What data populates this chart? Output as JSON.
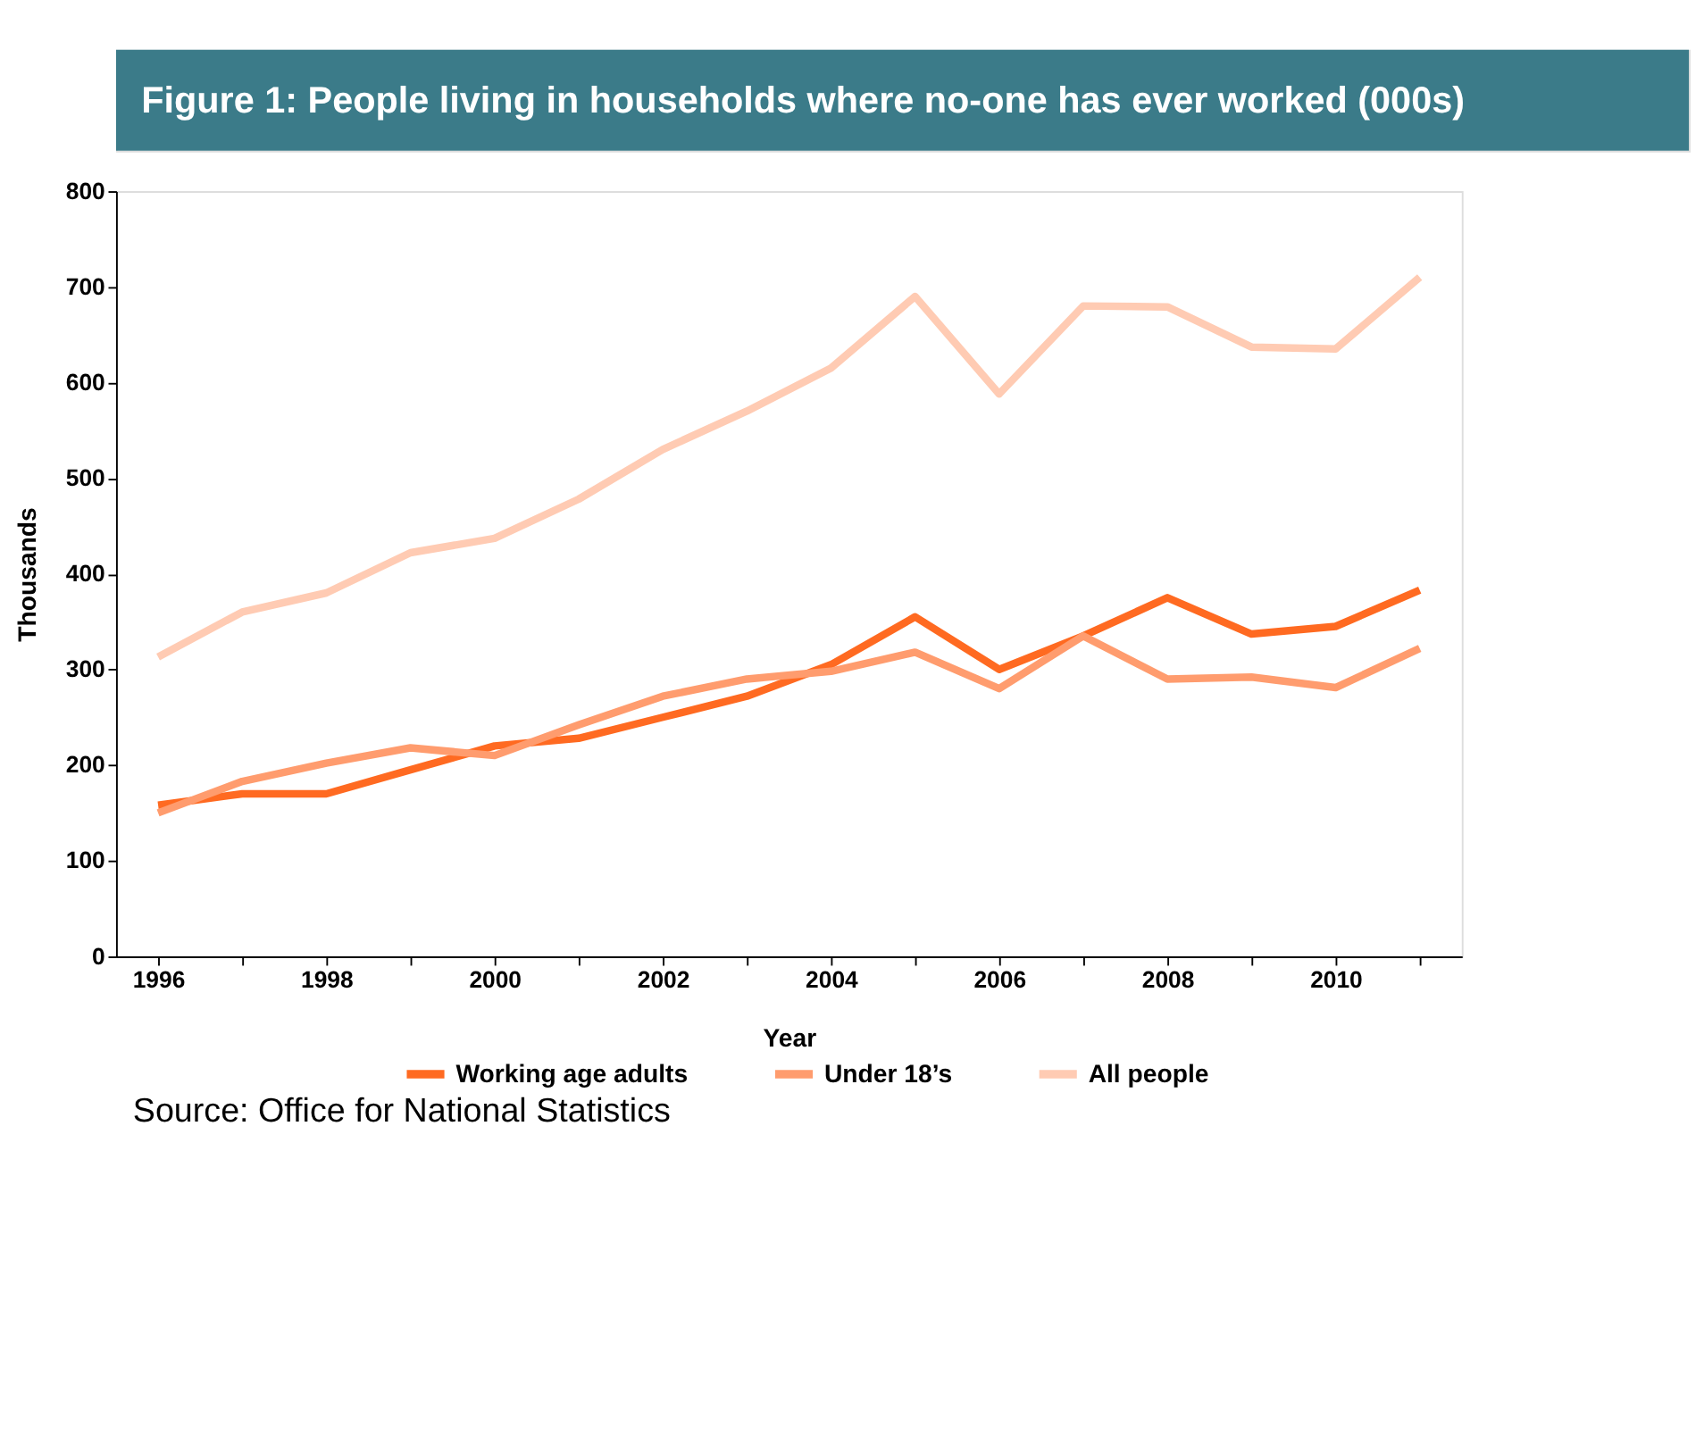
{
  "chart_data": {
    "type": "line",
    "title": "Figure 1: People living in households where no-one has ever worked (000s)",
    "xlabel": "Year",
    "ylabel": "Thousands",
    "categories": [
      "1996",
      null,
      "1998",
      null,
      "2000",
      null,
      "2002",
      null,
      "2004",
      null,
      "2006",
      null,
      "2008",
      null,
      "2010",
      null
    ],
    "series": [
      {
        "name": "Working age adults",
        "color": "#ff6a21",
        "values": [
          158,
          170,
          170,
          195,
          220,
          228,
          250,
          272,
          305,
          355,
          300,
          335,
          375,
          337,
          345,
          383
        ]
      },
      {
        "name": "Under 18’s",
        "color": "#ff9c6e",
        "values": [
          150,
          183,
          202,
          218,
          210,
          242,
          272,
          290,
          298,
          318,
          280,
          335,
          290,
          292,
          281,
          322
        ]
      },
      {
        "name": "All people",
        "color": "#ffcbb3",
        "values": [
          313,
          360,
          380,
          422,
          437,
          478,
          530,
          570,
          615,
          690,
          588,
          680,
          679,
          637,
          635,
          710
        ]
      }
    ],
    "ylim": [
      0,
      800
    ],
    "yticks": [
      0,
      100,
      200,
      300,
      400,
      500,
      600,
      700,
      800
    ],
    "grid": false,
    "legend": "bottom",
    "marker": "none",
    "line_style": "solid",
    "annotations": [
      "Source: Office for National Statistics"
    ]
  }
}
